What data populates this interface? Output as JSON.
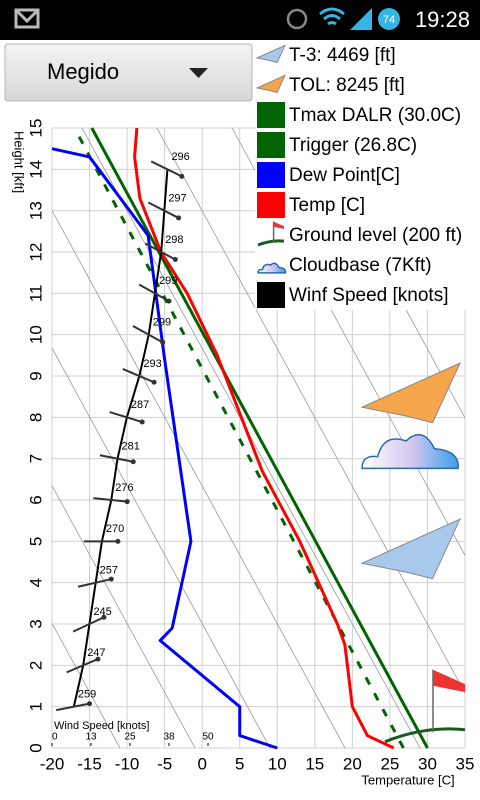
{
  "status_bar": {
    "time": "19:28",
    "battery": "74"
  },
  "location_selector": {
    "label": "Megido"
  },
  "chart_data": {
    "type": "line",
    "xlabel": "Temperature [C]",
    "ylabel": "Height [kft]",
    "xlim": [
      -20,
      35
    ],
    "xticks": [
      -20,
      -15,
      -10,
      -5,
      0,
      5,
      10,
      15,
      20,
      25,
      30,
      35
    ],
    "ylim": [
      0,
      15
    ],
    "yticks": [
      0,
      1,
      2,
      3,
      4,
      5,
      6,
      7,
      8,
      9,
      10,
      11,
      12,
      13,
      14,
      15
    ],
    "x2label": "Wind Speed [knots]",
    "x2lim": [
      0,
      50
    ],
    "x2ticks": [
      0,
      {
        "value": 12.5,
        "label": "13"
      },
      25,
      {
        "value": 37.5,
        "label": "38"
      },
      50
    ],
    "grid": true,
    "series": [
      {
        "name": "Tmax DALR (30.0C)",
        "color": "#006400",
        "x": [
          30,
          -14.7
        ],
        "values": [
          0,
          15
        ]
      },
      {
        "name": "Trigger (26.8C)",
        "color": "#006400",
        "dashed": true,
        "x": [
          26.8,
          -17
        ],
        "values": [
          0,
          15
        ]
      },
      {
        "name": "Dew Point[C]",
        "color": "#0000ff",
        "x": [
          10,
          5,
          5,
          -5.6,
          -4,
          -1.5,
          -5,
          -7.2,
          -15,
          -20
        ],
        "values": [
          0,
          0.3,
          1,
          2.6,
          2.9,
          5,
          9.4,
          12.4,
          14.3,
          14.5
        ]
      },
      {
        "name": "Temp [C]",
        "color": "#ff0000",
        "x": [
          25.5,
          22,
          20,
          19,
          18,
          13,
          8,
          2,
          -2,
          -5.5,
          -8.3,
          -9,
          -8.7
        ],
        "values": [
          0,
          0.3,
          1,
          2.5,
          3,
          5,
          6.7,
          9.5,
          11,
          12,
          13.3,
          14.3,
          15
        ]
      },
      {
        "name": "Winf Speed [knots]",
        "color": "#000000",
        "axis": "x2",
        "x": [
          7,
          10,
          12,
          14,
          16,
          19,
          21,
          24,
          28,
          31,
          33,
          35,
          36,
          37
        ],
        "values": [
          1,
          2,
          3,
          4,
          5,
          6,
          7,
          8,
          9,
          10,
          11,
          12,
          13,
          14
        ],
        "directions": [
          259,
          247,
          245,
          257,
          270,
          276,
          281,
          287,
          293,
          299,
          299,
          298,
          297,
          296
        ]
      }
    ],
    "markers": [
      {
        "name": "T-3: 4469 [ft]",
        "kind": "plane",
        "color": "#a9c9ec",
        "value": 4.469
      },
      {
        "name": "TOL: 8245 [ft]",
        "kind": "plane",
        "color": "#f7a54a",
        "value": 8.245
      },
      {
        "name": "Ground level (200 ft)",
        "kind": "ground",
        "color": "#1e5a1e",
        "value": 0.2
      },
      {
        "name": "Cloudbase (7Kft)",
        "kind": "cloud",
        "color": "#5aa6e0",
        "value": 7
      }
    ]
  }
}
